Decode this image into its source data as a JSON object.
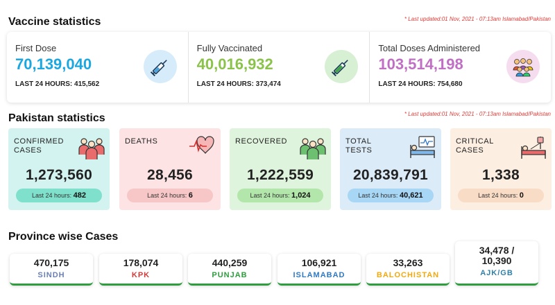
{
  "vaccine": {
    "heading": "Vaccine statistics",
    "updated": "* Last updated:01 Nov, 2021 - 07:13am Islamabad/Pakistan",
    "items": [
      {
        "label": "First Dose",
        "value": "70,139,040",
        "last": "LAST 24 HOURS: 415,562",
        "color": "#1ba7e0",
        "icon": "syringe-icon",
        "icon_bg": "#d6ecfb"
      },
      {
        "label": "Fully Vaccinated",
        "value": "40,016,932",
        "last": "LAST 24 HOURS: 373,474",
        "color": "#8bc34a",
        "icon": "syringe-icon",
        "icon_bg": "#d7f0d4"
      },
      {
        "label": "Total Doses Administered",
        "value": "103,514,198",
        "last": "LAST 24 HOURS: 754,680",
        "color": "#c06fc4",
        "icon": "crowd-icon",
        "icon_bg": "#f6dcef"
      }
    ]
  },
  "pakistan": {
    "heading": "Pakistan statistics",
    "updated": "* Last updated:01 Nov, 2021 - 07:13am Islamabad/Pakistan",
    "pill_prefix": "Last 24 hours:",
    "cards": [
      {
        "label": "CONFIRMED\nCASES",
        "value": "1,273,560",
        "last": "482",
        "bg": "#d3f3f1",
        "pill_bg": "#7fe0cc",
        "icon": "people-icon"
      },
      {
        "label": "DEATHS",
        "value": "28,456",
        "last": "6",
        "bg": "#fde3e3",
        "pill_bg": "#f7c7c7",
        "icon": "heartbeat-icon"
      },
      {
        "label": "RECOVERED",
        "value": "1,222,559",
        "last": "1,024",
        "bg": "#dff4dc",
        "pill_bg": "#b3e6ab",
        "icon": "people-icon"
      },
      {
        "label": "TOTAL\nTESTS",
        "value": "20,839,791",
        "last": "40,621",
        "bg": "#dcebf8",
        "pill_bg": "#a8d6f5",
        "icon": "monitor-patient-icon"
      },
      {
        "label": "CRITICAL\nCASES",
        "value": "1,338",
        "last": "0",
        "bg": "#fdeee2",
        "pill_bg": "#f9dcc5",
        "icon": "hospital-bed-icon"
      }
    ]
  },
  "province": {
    "heading": "Province wise Cases",
    "items": [
      {
        "value": "470,175",
        "name": "SINDH",
        "color": "#6a7fb5"
      },
      {
        "value": "178,074",
        "name": "KPK",
        "color": "#d23a3a"
      },
      {
        "value": "440,259",
        "name": "PUNJAB",
        "color": "#2e9d3e"
      },
      {
        "value": "106,921",
        "name": "ISLAMABAD",
        "color": "#2f78c4"
      },
      {
        "value": "33,263",
        "name": "BALOCHISTAN",
        "color": "#f1a90f"
      },
      {
        "value": "34,478 /\n10,390",
        "name": "AJK/GB",
        "color": "#2f7fa8"
      }
    ]
  }
}
